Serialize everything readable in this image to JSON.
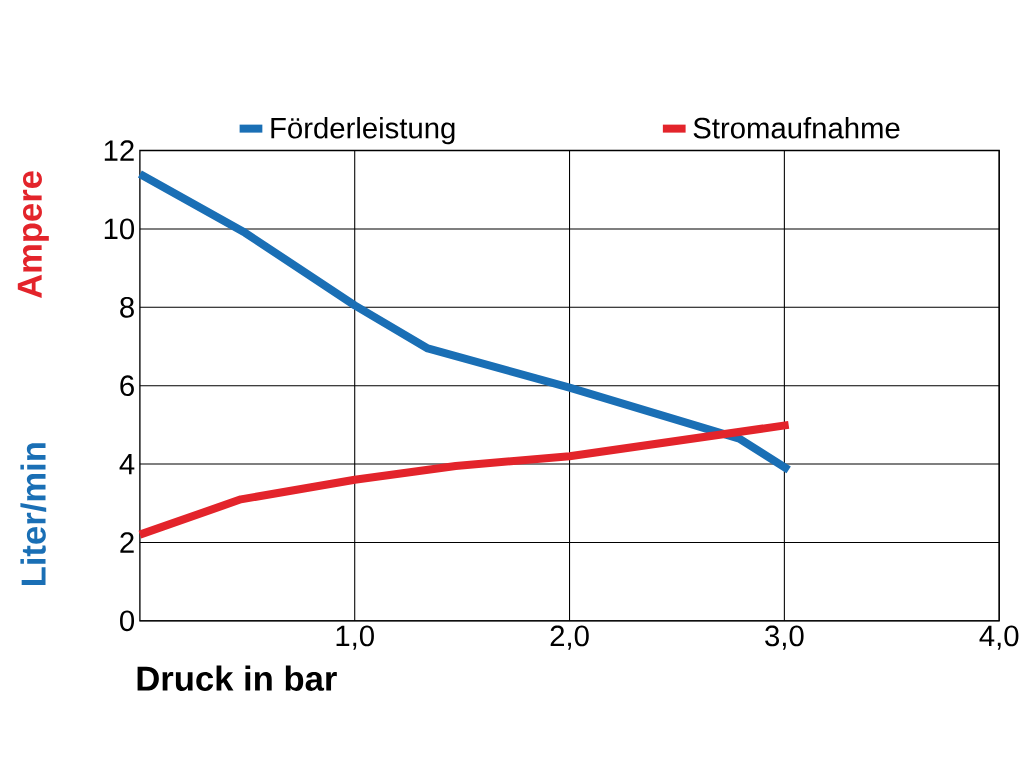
{
  "chart_data": {
    "type": "line",
    "xlabel": "Druck in bar",
    "ylabel": "Liter/min",
    "annotations": [
      "Ampere"
    ],
    "series": [
      {
        "name": "Förderleistung",
        "color": "#1a6fb5",
        "x": [
          0,
          0.49,
          1.0,
          1.34,
          2.0,
          2.79,
          3.02
        ],
        "values": [
          11.4,
          9.9,
          8.05,
          6.95,
          5.95,
          4.65,
          3.85
        ]
      },
      {
        "name": "Stromaufnahme",
        "color": "#e3242b",
        "x": [
          0,
          0.47,
          1.0,
          1.47,
          2.0,
          3.02
        ],
        "values": [
          2.2,
          3.1,
          3.6,
          3.95,
          4.2,
          5.0
        ]
      }
    ],
    "xlim": [
      0,
      4
    ],
    "ylim": [
      0,
      12
    ],
    "xticks": [
      {
        "value": 1,
        "label": "1,0"
      },
      {
        "value": 2,
        "label": "2,0"
      },
      {
        "value": 3,
        "label": "3,0"
      },
      {
        "value": 4,
        "label": "4,0"
      }
    ],
    "yticks": [
      0,
      2,
      4,
      6,
      8,
      10,
      12
    ],
    "grid": true,
    "legend": "top",
    "marker": "none",
    "line_style": "solid"
  }
}
